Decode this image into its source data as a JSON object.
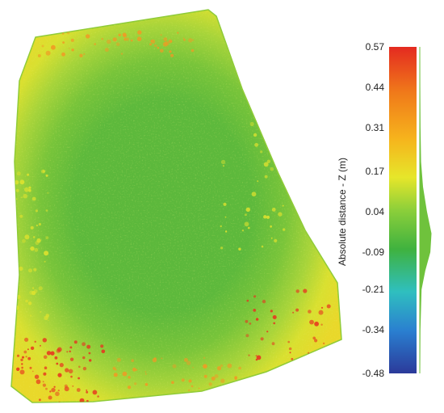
{
  "chart_data": {
    "type": "heatmap",
    "title": "",
    "colorbar": {
      "label": "Absolute distance - Z (m)",
      "ticks": [
        0.57,
        0.44,
        0.31,
        0.17,
        0.04,
        -0.09,
        -0.21,
        -0.34,
        -0.48
      ],
      "tick_labels": [
        "0.57",
        "0.44",
        "0.31",
        "0.17",
        "0.04",
        "-0.09",
        "-0.21",
        "-0.34",
        "-0.48"
      ],
      "range": [
        -0.48,
        0.57
      ],
      "colormap": [
        "#2b3a9a",
        "#2a7fd0",
        "#2fbfbf",
        "#3fb23f",
        "#8ccf3a",
        "#e6e62a",
        "#f6b31c",
        "#f07a1a",
        "#e42a20"
      ],
      "histogram": [
        {
          "value": 0.57,
          "density": 0.0
        },
        {
          "value": 0.44,
          "density": 0.01
        },
        {
          "value": 0.31,
          "density": 0.03
        },
        {
          "value": 0.2,
          "density": 0.08
        },
        {
          "value": 0.12,
          "density": 0.25
        },
        {
          "value": 0.04,
          "density": 0.6
        },
        {
          "value": -0.03,
          "density": 1.0
        },
        {
          "value": -0.09,
          "density": 0.9
        },
        {
          "value": -0.15,
          "density": 0.45
        },
        {
          "value": -0.21,
          "density": 0.12
        },
        {
          "value": -0.34,
          "density": 0.02
        },
        {
          "value": -0.48,
          "density": 0.0
        }
      ]
    },
    "map_colors": {
      "center": "#5cb83c",
      "mid": "#8fcb38",
      "edge": "#dfe22e",
      "hot": "#e8321e",
      "warm": "#f19a24"
    }
  }
}
